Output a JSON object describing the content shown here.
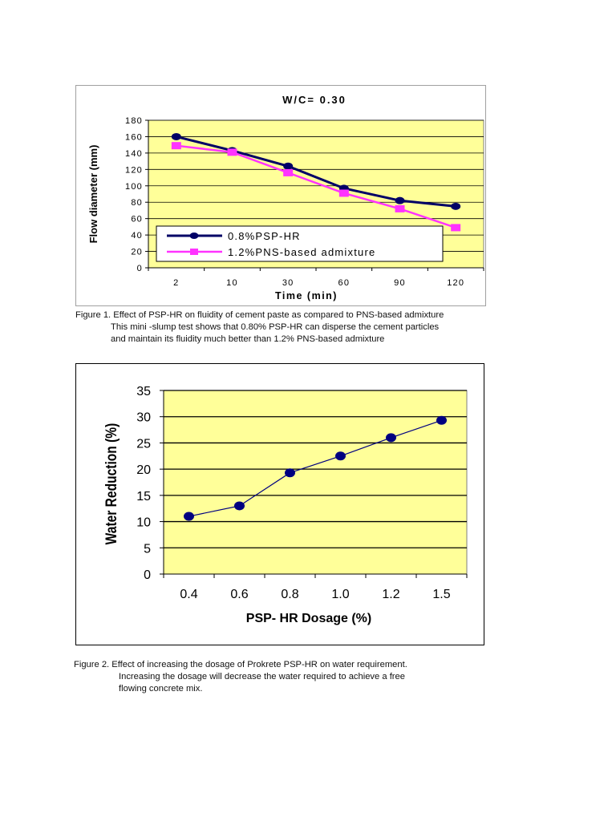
{
  "colors": {
    "plot_bg": "#ffff99",
    "grid": "#000000",
    "series1": "#000066",
    "series2": "#ff33ff",
    "series_chart2": "#000080"
  },
  "figure1_caption": [
    "Figure 1. Effect of PSP-HR on fluidity of cement paste as compared to PNS-based admixture",
    "This mini -slump test shows that 0.80% PSP-HR can disperse the cement particles",
    "and maintain its fluidity much better than 1.2% PNS-based admixture"
  ],
  "figure2_caption": [
    "Figure 2. Effect of increasing the dosage of Prokrete PSP-HR on water requirement.",
    "Increasing the dosage will decrease the water required to achieve a free",
    "flowing concrete mix."
  ],
  "chart_data": [
    {
      "type": "line",
      "title": "W/C= 0.30",
      "xlabel": "Time (min)",
      "ylabel": "Flow diameter (mm)",
      "categories": [
        "2",
        "10",
        "30",
        "60",
        "90",
        "120"
      ],
      "ylim": [
        0,
        180
      ],
      "yticks": [
        0,
        20,
        40,
        60,
        80,
        100,
        120,
        140,
        160,
        180
      ],
      "grid": true,
      "legend": "bottom-left",
      "series": [
        {
          "name": "0.8%PSP-HR",
          "values": [
            160,
            143,
            124,
            97,
            82,
            75
          ]
        },
        {
          "name": "1.2%PNS-based admixture",
          "values": [
            149,
            141,
            116,
            91,
            72,
            49
          ]
        }
      ]
    },
    {
      "type": "line",
      "title": "",
      "xlabel": "PSP- HR Dosage (%)",
      "ylabel": "Water Reduction (%)",
      "categories": [
        "0.4",
        "0.6",
        "0.8",
        "1.0",
        "1.2",
        "1.5"
      ],
      "ylim": [
        0,
        35
      ],
      "yticks": [
        0,
        5,
        10,
        15,
        20,
        25,
        30,
        35
      ],
      "grid": true,
      "series": [
        {
          "values": [
            11,
            13,
            19.3,
            22.5,
            26,
            29.3
          ]
        }
      ]
    }
  ]
}
